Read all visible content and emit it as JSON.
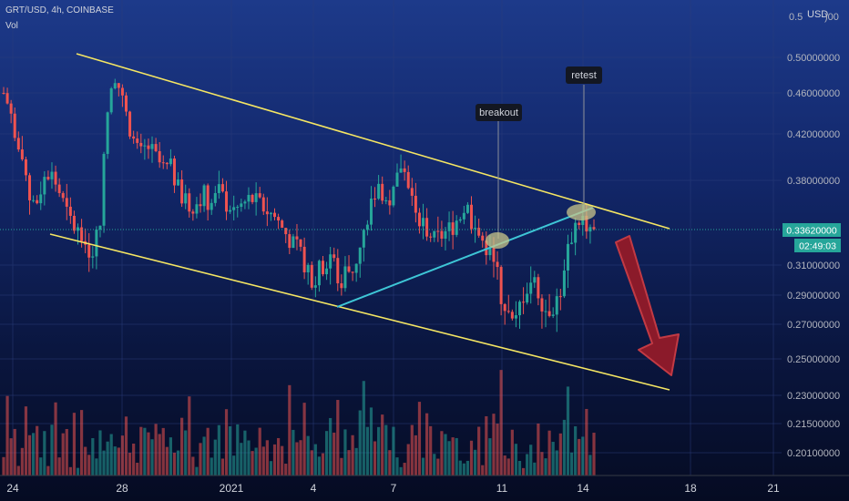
{
  "header": {
    "symbol_line": "GRT/USD, 4h, COINBASE",
    "vol_label": "Vol",
    "currency": "USD"
  },
  "price_axis": {
    "ticks": [
      "0.50000000",
      "0.46000000",
      "0.42000000",
      "0.38000000",
      "0.31000000",
      "0.29000000",
      "0.27000000",
      "0.25000000",
      "0.23000000",
      "0.21500000",
      "0.20100000"
    ],
    "partial_top": "0.5"
  },
  "time_axis": {
    "labels": [
      "24",
      "28",
      "2021",
      "4",
      "7",
      "11",
      "14",
      "18",
      "21"
    ]
  },
  "current_price": {
    "value": "0.33620000",
    "countdown": "02:49:03"
  },
  "annotations": {
    "breakout": "breakout",
    "retest": "retest"
  },
  "colors": {
    "up": "#26a69a",
    "down": "#ef5350",
    "channel": "#f5e663",
    "trendline": "#3ec6d6",
    "arrow": "#8b1a2a"
  },
  "chart_data": {
    "type": "candlestick",
    "title": "GRT/USD, 4h, COINBASE",
    "ylabel": "USD",
    "ylim": [
      0.19,
      0.52
    ],
    "ohlc_close_path": [
      0.46,
      0.44,
      0.4,
      0.37,
      0.36,
      0.38,
      0.39,
      0.37,
      0.35,
      0.34,
      0.33,
      0.32,
      0.34,
      0.44,
      0.48,
      0.45,
      0.42,
      0.4,
      0.41,
      0.4,
      0.39,
      0.39,
      0.37,
      0.36,
      0.36,
      0.37,
      0.36,
      0.37,
      0.36,
      0.355,
      0.36,
      0.365,
      0.36,
      0.355,
      0.35,
      0.34,
      0.33,
      0.32,
      0.31,
      0.3,
      0.31,
      0.32,
      0.3,
      0.305,
      0.31,
      0.33,
      0.36,
      0.38,
      0.36,
      0.37,
      0.4,
      0.37,
      0.35,
      0.34,
      0.33,
      0.335,
      0.34,
      0.35,
      0.36,
      0.34,
      0.33,
      0.32,
      0.3,
      0.28,
      0.265,
      0.29,
      0.3,
      0.295,
      0.28,
      0.285,
      0.29,
      0.33,
      0.35,
      0.345,
      0.336
    ],
    "annotations": [
      "breakout",
      "retest"
    ]
  }
}
